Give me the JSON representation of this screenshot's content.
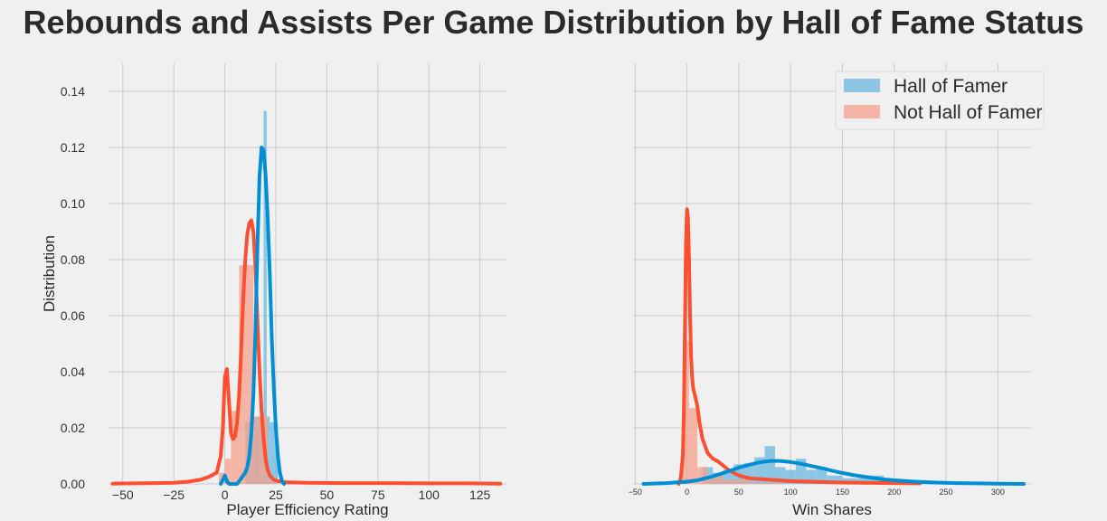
{
  "title": "Rebounds and Assists Per Game Distribution by Hall of Fame Status",
  "colors": {
    "hof_line": "#008fd5",
    "hof_hist": "#6cb8e0",
    "not_line": "#fc4f30",
    "not_hist": "#f5a08e",
    "grid": "#cbcbcb",
    "background": "#f0f0f0"
  },
  "legend": {
    "position": "upper-right",
    "labels": [
      "Hall of Famer",
      "Not Hall of Famer"
    ]
  },
  "chart_data": [
    {
      "type": "area",
      "xlabel": "Player Efficiency Rating",
      "ylabel": "Distribution",
      "xlim": [
        -57,
        138
      ],
      "ylim": [
        0,
        0.15
      ],
      "xticks": [
        -50,
        -25,
        0,
        25,
        50,
        75,
        100,
        125
      ],
      "xtick_labels": [
        "−50",
        "−25",
        "0",
        "25",
        "50",
        "75",
        "100",
        "125"
      ],
      "yticks": [
        0,
        0.02,
        0.04,
        0.06,
        0.08,
        0.1,
        0.12,
        0.14
      ],
      "ytick_labels": [
        "0.00",
        "0.02",
        "0.04",
        "0.06",
        "0.08",
        "0.10",
        "0.12",
        "0.14"
      ],
      "grid": true,
      "histograms": [
        {
          "series": "Hall of Famer",
          "bins": [
            [
              0,
              2.5,
              0.001
            ],
            [
              10,
              14,
              0.022
            ],
            [
              14,
              17,
              0.024
            ],
            [
              17,
              19,
              0.024
            ],
            [
              19,
              20.5,
              0.133
            ],
            [
              20.5,
              22,
              0.024
            ],
            [
              22,
              26,
              0.022
            ]
          ]
        },
        {
          "series": "Not Hall of Famer",
          "bins": [
            [
              -3,
              0,
              0.004
            ],
            [
              0,
              3,
              0.009
            ],
            [
              3,
              7,
              0.026
            ],
            [
              7,
              14,
              0.078
            ],
            [
              14,
              21,
              0.024
            ],
            [
              21,
              25,
              0.0015
            ]
          ]
        }
      ],
      "kde": [
        {
          "series": "Not Hall of Famer",
          "x": [
            -55,
            -45,
            -35,
            -25,
            -18,
            -12,
            -8,
            -4,
            -2,
            -1,
            0,
            1,
            2,
            3,
            4,
            5,
            6,
            7,
            8,
            9,
            10,
            11,
            12,
            13,
            14,
            15,
            16,
            17,
            18,
            19,
            20,
            21,
            22,
            24,
            26,
            30,
            40,
            60,
            80,
            100,
            120,
            135
          ],
          "y": [
            0.0001,
            0.0002,
            0.0003,
            0.0004,
            0.0008,
            0.0015,
            0.0025,
            0.004,
            0.01,
            0.02,
            0.038,
            0.041,
            0.03,
            0.018,
            0.016,
            0.017,
            0.022,
            0.032,
            0.048,
            0.066,
            0.08,
            0.089,
            0.093,
            0.094,
            0.09,
            0.077,
            0.058,
            0.04,
            0.026,
            0.016,
            0.009,
            0.005,
            0.003,
            0.0015,
            0.001,
            0.0006,
            0.0004,
            0.0003,
            0.0003,
            0.0002,
            0.0002,
            0.0001
          ]
        },
        {
          "series": "Hall of Famer",
          "x": [
            -2,
            -1,
            0,
            1,
            2,
            4,
            6,
            8,
            10,
            11,
            12,
            13,
            14,
            15,
            16,
            17,
            18,
            19,
            20,
            21,
            22,
            23,
            24,
            25,
            26,
            27,
            28,
            29
          ],
          "y": [
            0.0,
            0.0015,
            0.003,
            0.001,
            0.0,
            0.0,
            0.0,
            0.002,
            0.004,
            0.006,
            0.01,
            0.018,
            0.032,
            0.055,
            0.085,
            0.11,
            0.12,
            0.119,
            0.11,
            0.095,
            0.075,
            0.052,
            0.034,
            0.02,
            0.01,
            0.004,
            0.001,
            0.0
          ]
        }
      ]
    },
    {
      "type": "area",
      "xlabel": "Win Shares",
      "ylabel": "",
      "xlim": [
        -52,
        332
      ],
      "ylim": [
        0,
        0.15
      ],
      "xticks": [
        -50,
        0,
        50,
        100,
        150,
        200,
        250,
        300
      ],
      "xtick_labels": [
        "−50",
        "0",
        "50",
        "100",
        "150",
        "200",
        "250",
        "300"
      ],
      "grid": true,
      "histograms": [
        {
          "series": "Hall of Famer",
          "bins": [
            [
              15,
              25,
              0.006
            ],
            [
              25,
              35,
              0.004
            ],
            [
              35,
              45,
              0.005
            ],
            [
              45,
              55,
              0.007
            ],
            [
              55,
              65,
              0.0075
            ],
            [
              65,
              75,
              0.0095
            ],
            [
              75,
              85,
              0.0135
            ],
            [
              85,
              95,
              0.006
            ],
            [
              95,
              105,
              0.005
            ],
            [
              105,
              115,
              0.009
            ],
            [
              115,
              125,
              0.005
            ],
            [
              125,
              135,
              0.006
            ],
            [
              135,
              150,
              0.003
            ],
            [
              150,
              170,
              0.002
            ],
            [
              170,
              190,
              0.003
            ]
          ]
        },
        {
          "series": "Not Hall of Famer",
          "bins": [
            [
              -10,
              -4,
              0.001
            ],
            [
              -4,
              2,
              0.051
            ],
            [
              2,
              10,
              0.027
            ],
            [
              10,
              20,
              0.006
            ],
            [
              20,
              35,
              0.003
            ],
            [
              35,
              60,
              0.0015
            ],
            [
              60,
              90,
              0.0005
            ]
          ]
        }
      ],
      "kde": [
        {
          "series": "Not Hall of Famer",
          "x": [
            -8,
            -6,
            -4,
            -3,
            -2,
            -1,
            0,
            1,
            2,
            3,
            4,
            5,
            6,
            8,
            10,
            12,
            15,
            20,
            25,
            30,
            40,
            50,
            60,
            80,
            100,
            120,
            150,
            200,
            225
          ],
          "y": [
            0.0,
            0.002,
            0.01,
            0.025,
            0.055,
            0.085,
            0.098,
            0.095,
            0.08,
            0.06,
            0.045,
            0.038,
            0.034,
            0.031,
            0.028,
            0.022,
            0.016,
            0.011,
            0.009,
            0.008,
            0.005,
            0.003,
            0.002,
            0.0015,
            0.001,
            0.0008,
            0.0005,
            0.0003,
            0.0002
          ]
        },
        {
          "series": "Hall of Famer",
          "x": [
            -42,
            -20,
            0,
            10,
            20,
            30,
            40,
            50,
            60,
            70,
            80,
            90,
            100,
            110,
            120,
            130,
            140,
            150,
            160,
            170,
            180,
            190,
            200,
            220,
            240,
            260,
            280,
            300,
            325
          ],
          "y": [
            0.0,
            0.0003,
            0.0008,
            0.0013,
            0.0022,
            0.0033,
            0.0045,
            0.0058,
            0.0068,
            0.0077,
            0.0082,
            0.0082,
            0.0078,
            0.0072,
            0.0064,
            0.0056,
            0.0047,
            0.0039,
            0.0032,
            0.0026,
            0.0021,
            0.0016,
            0.0013,
            0.0008,
            0.0005,
            0.0003,
            0.0002,
            0.0001,
            0.0
          ]
        }
      ]
    }
  ]
}
